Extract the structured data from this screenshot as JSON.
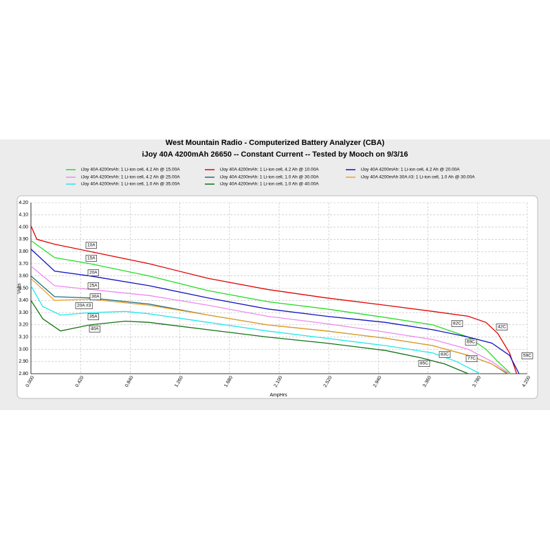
{
  "chart_data": {
    "type": "line",
    "title": "West Mountain Radio - Computerized Battery Analyzer (CBA)",
    "subtitle": "iJoy 40A 4200mAh 26650 -- Constant Current -- Tested by Mooch on 9/3/16",
    "x_label": "AmpHrs",
    "y_label": "Volts",
    "xlim": [
      0,
      4.2
    ],
    "ylim": [
      2.8,
      4.2
    ],
    "grid": true,
    "xticks": [
      {
        "value": 0,
        "label": "0.000"
      },
      {
        "value": 0.42,
        "label": "0.420"
      },
      {
        "value": 0.84,
        "label": "0.840"
      },
      {
        "value": 1.26,
        "label": "1.260"
      },
      {
        "value": 1.68,
        "label": "1.680"
      },
      {
        "value": 2.1,
        "label": "2.100"
      },
      {
        "value": 2.52,
        "label": "2.520"
      },
      {
        "value": 2.94,
        "label": "2.940"
      },
      {
        "value": 3.36,
        "label": "3.360"
      },
      {
        "value": 3.78,
        "label": "3.780"
      },
      {
        "value": 4.2,
        "label": "4.200"
      }
    ],
    "yticks": [
      {
        "value": 2.8,
        "label": "2.80"
      },
      {
        "value": 2.9,
        "label": "2.90"
      },
      {
        "value": 3.0,
        "label": "3.00"
      },
      {
        "value": 3.1,
        "label": "3.10"
      },
      {
        "value": 3.2,
        "label": "3.20"
      },
      {
        "value": 3.3,
        "label": "3.30"
      },
      {
        "value": 3.4,
        "label": "3.40"
      },
      {
        "value": 3.5,
        "label": "3.50"
      },
      {
        "value": 3.6,
        "label": "3.60"
      },
      {
        "value": 3.7,
        "label": "3.70"
      },
      {
        "value": 3.8,
        "label": "3.80"
      },
      {
        "value": 3.9,
        "label": "3.90"
      },
      {
        "value": 4.0,
        "label": "4.00"
      },
      {
        "value": 4.1,
        "label": "4.10"
      },
      {
        "value": 4.2,
        "label": "4.20"
      }
    ],
    "series": [
      {
        "name": "iJoy 40A 4200mAh: 1 Li-ion cell, 4.2 Ah @ 15.00A",
        "color": "#22dd22",
        "x": [
          0,
          0.2,
          0.5,
          1.0,
          1.5,
          2.0,
          2.5,
          3.0,
          3.4,
          3.7,
          3.85,
          3.95,
          4.06
        ],
        "values": [
          3.89,
          3.75,
          3.7,
          3.6,
          3.48,
          3.39,
          3.33,
          3.26,
          3.2,
          3.1,
          3.0,
          2.9,
          2.8
        ]
      },
      {
        "name": "iJoy 40A 4200mAh: 1 Li-ion cell, 4.2 Ah @ 10.00A",
        "color": "#e00000",
        "x": [
          0,
          0.05,
          0.2,
          0.5,
          1.0,
          1.5,
          2.0,
          2.5,
          3.0,
          3.4,
          3.7,
          3.85,
          3.95,
          4.05,
          4.11
        ],
        "values": [
          4.01,
          3.9,
          3.86,
          3.8,
          3.7,
          3.58,
          3.49,
          3.42,
          3.36,
          3.31,
          3.27,
          3.22,
          3.13,
          2.97,
          2.8
        ]
      },
      {
        "name": "iJoy 40A 4200mAh: 1 Li-ion cell, 4.2 Ah @ 20.00A",
        "color": "#1010c0",
        "x": [
          0,
          0.2,
          0.5,
          1.0,
          1.5,
          2.0,
          2.5,
          3.0,
          3.4,
          3.7,
          3.9,
          4.05,
          4.13
        ],
        "values": [
          3.82,
          3.64,
          3.6,
          3.52,
          3.42,
          3.33,
          3.27,
          3.22,
          3.16,
          3.1,
          3.05,
          2.95,
          2.8
        ]
      },
      {
        "name": "iJoy 40A 4200mAh: 1 Li-ion cell, 4.2 Ah @ 25.00A",
        "color": "#ee88ee",
        "x": [
          0,
          0.2,
          0.5,
          1.0,
          1.5,
          2.0,
          2.5,
          3.0,
          3.4,
          3.7,
          3.9,
          4.05
        ],
        "values": [
          3.68,
          3.52,
          3.49,
          3.44,
          3.36,
          3.27,
          3.21,
          3.14,
          3.08,
          3.0,
          2.9,
          2.8
        ]
      },
      {
        "name": "iJoy 40A 4200mAh: 1 Li-ion cell, 1.0 Ah @ 30.00A",
        "color": "#1a6e80",
        "x": [
          0,
          0.2,
          0.5,
          1.0,
          1.5,
          2.0,
          2.5,
          3.0,
          3.4,
          3.7,
          3.9,
          4.03
        ],
        "values": [
          3.6,
          3.43,
          3.42,
          3.37,
          3.28,
          3.2,
          3.15,
          3.09,
          3.03,
          2.95,
          2.88,
          2.8
        ]
      },
      {
        "name": "iJoy 40A 4200mAh 30A #3: 1 Li-ion cell, 1.0 Ah @ 30.00A",
        "color": "#f0a020",
        "x": [
          0,
          0.2,
          0.5,
          1.0,
          1.5,
          2.0,
          2.5,
          3.0,
          3.4,
          3.7,
          3.9,
          4.04
        ],
        "values": [
          3.58,
          3.4,
          3.41,
          3.36,
          3.28,
          3.2,
          3.15,
          3.09,
          3.03,
          2.95,
          2.88,
          2.8
        ]
      },
      {
        "name": "iJoy 40A 4200mAh: 1 Li-ion cell, 1.0 Ah @ 35.00A",
        "color": "#22e8e8",
        "x": [
          0,
          0.1,
          0.25,
          0.5,
          0.8,
          1.0,
          1.5,
          2.0,
          2.5,
          3.0,
          3.4,
          3.6,
          3.8
        ],
        "values": [
          3.52,
          3.35,
          3.28,
          3.3,
          3.31,
          3.29,
          3.22,
          3.15,
          3.09,
          3.03,
          2.97,
          2.9,
          2.8
        ]
      },
      {
        "name": "iJoy 40A 4200mAh: 1 Li-ion cell, 1.0 Ah @ 40.00A",
        "color": "#107010",
        "x": [
          0,
          0.1,
          0.25,
          0.5,
          0.8,
          1.0,
          1.5,
          2.0,
          2.5,
          3.0,
          3.3,
          3.5,
          3.7
        ],
        "values": [
          3.4,
          3.25,
          3.15,
          3.2,
          3.23,
          3.22,
          3.16,
          3.1,
          3.05,
          2.99,
          2.93,
          2.88,
          2.8
        ]
      }
    ],
    "annotations": [
      "10A",
      "15A",
      "20A",
      "25A",
      "30A",
      "20A #3",
      "35A",
      "40A",
      "82C",
      "42C",
      "69C",
      "59C",
      "83C",
      "77C",
      "85C"
    ]
  }
}
